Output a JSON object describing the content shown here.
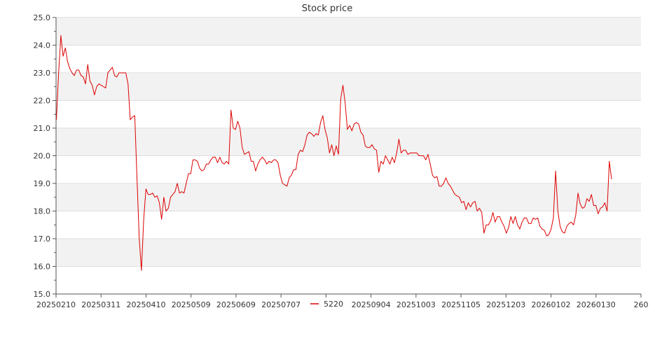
{
  "chart_data": {
    "type": "line",
    "title": "Stock price",
    "xlabel": "",
    "ylabel": "",
    "ylim": [
      15.0,
      25.0
    ],
    "y_ticks": [
      "15.0",
      "16.0",
      "17.0",
      "18.0",
      "19.0",
      "20.0",
      "21.0",
      "22.0",
      "23.0",
      "24.0",
      "25.0"
    ],
    "x_ticks": [
      "20250210",
      "20250311",
      "20250410",
      "20250509",
      "20250609",
      "20250707",
      "",
      "20250904",
      "20251003",
      "20251105",
      "20251203",
      "20260102",
      "20260130",
      "260"
    ],
    "grid": "horizontal, alternating bands",
    "legend_position": "bottom-center",
    "colors": {
      "line": "#dd0000",
      "band": "#f2f2f2",
      "grid": "#dddddd",
      "axis": "#555555"
    },
    "series": [
      {
        "name": "5220",
        "values": [
          21.3,
          23.0,
          24.35,
          23.6,
          23.9,
          23.4,
          23.15,
          23.0,
          22.9,
          23.1,
          23.1,
          22.9,
          22.85,
          22.6,
          23.3,
          22.7,
          22.55,
          22.2,
          22.5,
          22.6,
          22.55,
          22.5,
          22.45,
          23.0,
          23.1,
          23.2,
          22.9,
          22.85,
          23.0,
          23.0,
          23.0,
          23.0,
          22.6,
          21.3,
          21.4,
          21.45,
          19.2,
          17.0,
          15.85,
          17.7,
          18.8,
          18.6,
          18.6,
          18.65,
          18.5,
          18.55,
          18.3,
          17.7,
          18.5,
          18.0,
          18.1,
          18.5,
          18.6,
          18.7,
          19.0,
          18.65,
          18.7,
          18.65,
          19.0,
          19.35,
          19.35,
          19.85,
          19.85,
          19.8,
          19.55,
          19.45,
          19.5,
          19.7,
          19.7,
          19.85,
          19.95,
          19.95,
          19.75,
          19.95,
          19.75,
          19.7,
          19.8,
          19.7,
          21.65,
          21.0,
          20.95,
          21.25,
          21.0,
          20.3,
          20.05,
          20.1,
          20.15,
          19.8,
          19.8,
          19.45,
          19.7,
          19.85,
          19.95,
          19.85,
          19.7,
          19.8,
          19.75,
          19.85,
          19.85,
          19.75,
          19.3,
          19.0,
          18.95,
          18.9,
          19.2,
          19.3,
          19.5,
          19.5,
          20.05,
          20.2,
          20.15,
          20.4,
          20.75,
          20.85,
          20.8,
          20.7,
          20.8,
          20.75,
          21.2,
          21.45,
          20.95,
          20.65,
          20.1,
          20.4,
          20.0,
          20.35,
          20.05,
          22.05,
          22.55,
          21.9,
          20.95,
          21.1,
          20.9,
          21.15,
          21.2,
          21.15,
          20.85,
          20.75,
          20.35,
          20.3,
          20.3,
          20.4,
          20.25,
          20.2,
          19.4,
          19.8,
          19.7,
          20.0,
          19.85,
          19.7,
          19.95,
          19.75,
          20.1,
          20.6,
          20.1,
          20.2,
          20.2,
          20.05,
          20.1,
          20.1,
          20.1,
          20.1,
          20.0,
          20.0,
          20.0,
          19.85,
          20.05,
          19.7,
          19.3,
          19.2,
          19.25,
          18.9,
          18.9,
          19.0,
          19.2,
          19.0,
          18.9,
          18.75,
          18.6,
          18.55,
          18.5,
          18.3,
          18.35,
          18.05,
          18.3,
          18.15,
          18.3,
          18.35,
          18.0,
          18.1,
          17.95,
          17.2,
          17.5,
          17.5,
          17.65,
          17.95,
          17.6,
          17.8,
          17.8,
          17.6,
          17.45,
          17.2,
          17.4,
          17.8,
          17.55,
          17.8,
          17.5,
          17.35,
          17.6,
          17.75,
          17.75,
          17.55,
          17.55,
          17.75,
          17.7,
          17.75,
          17.45,
          17.35,
          17.3,
          17.1,
          17.15,
          17.35,
          17.75,
          19.45,
          18.0,
          17.45,
          17.25,
          17.2,
          17.45,
          17.55,
          17.6,
          17.5,
          17.85,
          18.65,
          18.25,
          18.1,
          18.15,
          18.45,
          18.35,
          18.6,
          18.2,
          18.2,
          17.9,
          18.1,
          18.15,
          18.3,
          18.0,
          19.8,
          19.15
        ]
      }
    ]
  }
}
